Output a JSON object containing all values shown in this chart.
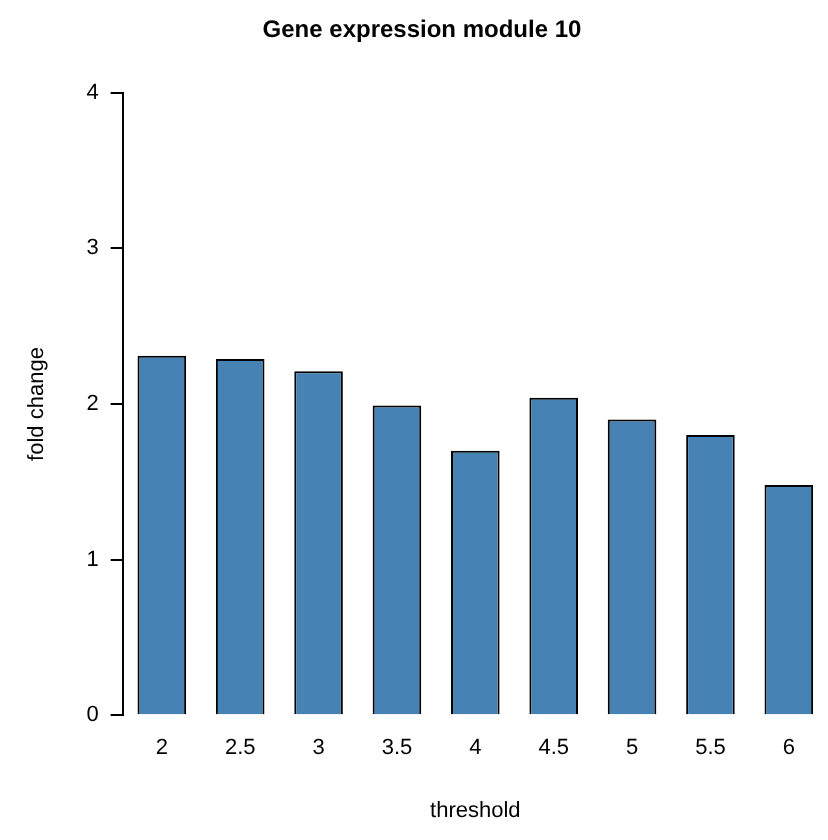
{
  "chart_data": {
    "type": "bar",
    "title": "Gene expression module 10",
    "xlabel": "threshold",
    "ylabel": "fold change",
    "categories": [
      "2",
      "2.5",
      "3",
      "3.5",
      "4",
      "4.5",
      "5",
      "5.5",
      "6"
    ],
    "values": [
      2.31,
      2.29,
      2.21,
      1.99,
      1.7,
      2.04,
      1.9,
      1.8,
      1.48
    ],
    "color": "#4682b4",
    "ylim": [
      0,
      4
    ],
    "yticks": [
      0,
      1,
      2,
      3,
      4
    ],
    "grid": false,
    "legend": false
  }
}
